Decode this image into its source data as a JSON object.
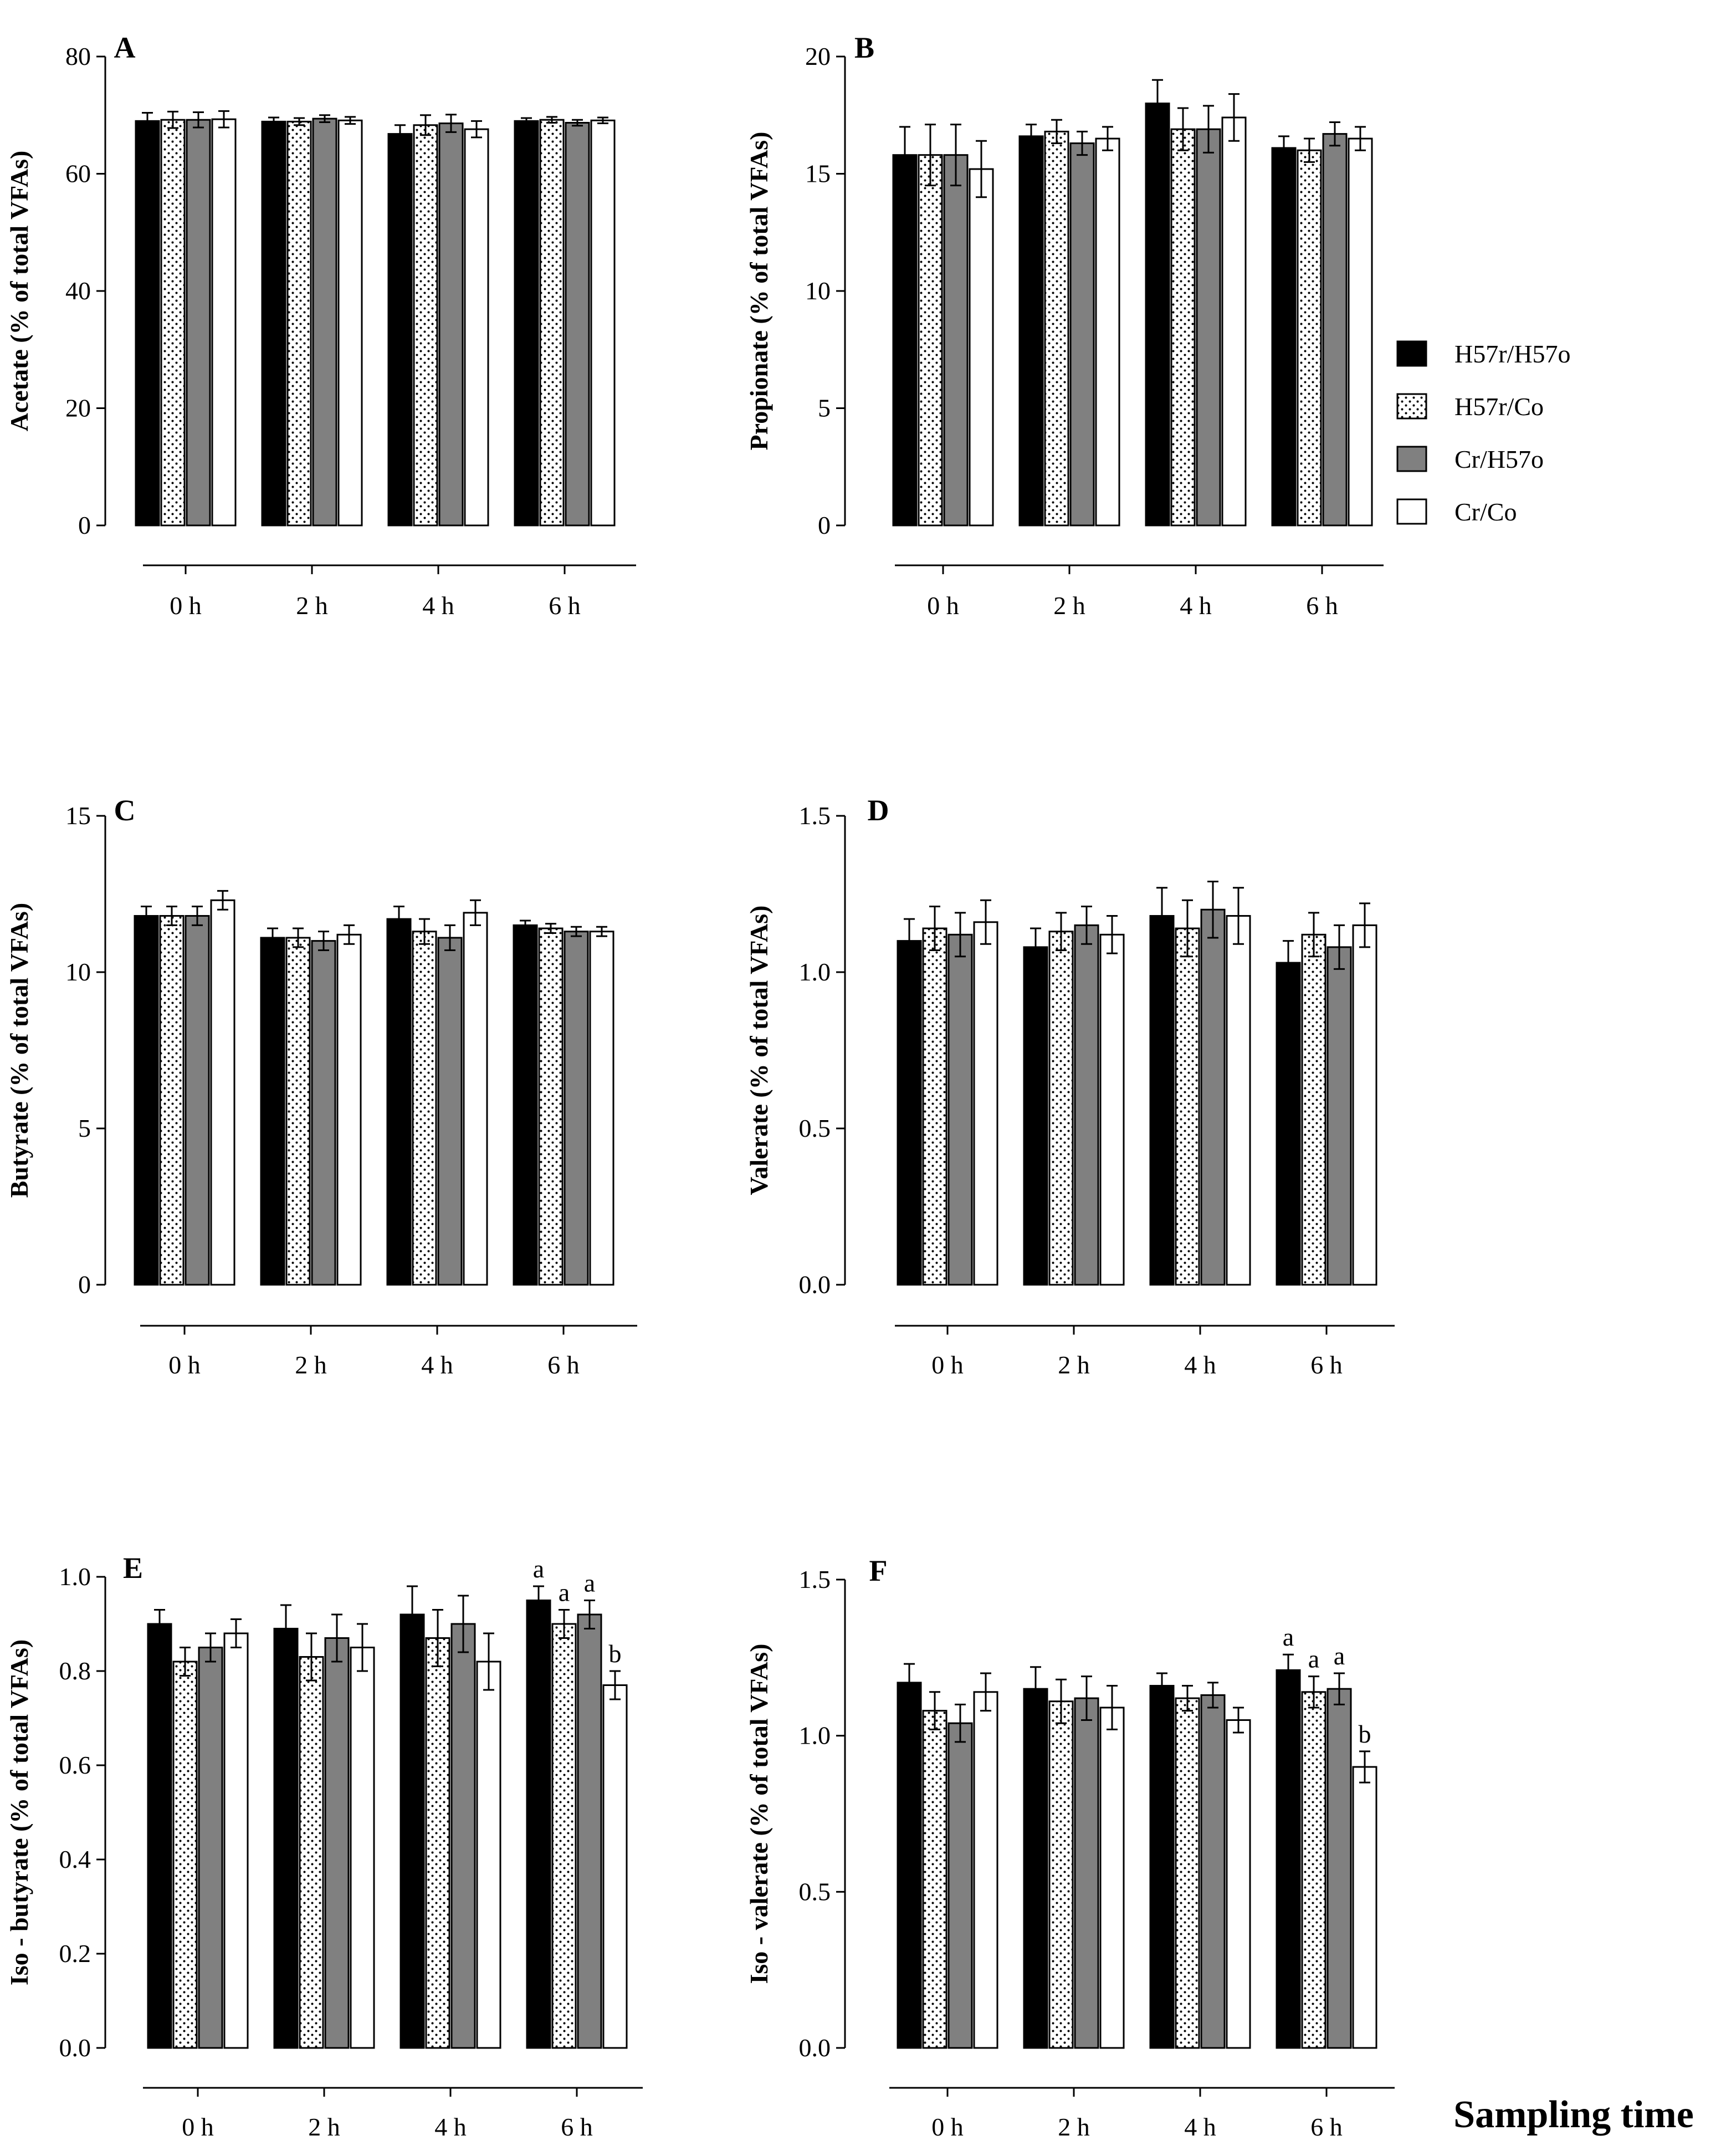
{
  "legend": [
    {
      "label": "H57r/H57o",
      "fill": "#000000",
      "pattern": "solid"
    },
    {
      "label": "H57r/Co",
      "fill": "#ffffff",
      "pattern": "dots"
    },
    {
      "label": "Cr/H57o",
      "fill": "#808080",
      "pattern": "solid"
    },
    {
      "label": "Cr/Co",
      "fill": "#ffffff",
      "pattern": "solid"
    }
  ],
  "x_title": "Sampling time",
  "chart_data": [
    {
      "panel": "A",
      "type": "bar",
      "ylabel": "Acetate (% of total VFAs)",
      "categories": [
        "0 h",
        "2 h",
        "4 h",
        "6 h"
      ],
      "ylim": [
        0,
        80
      ],
      "yticks": [
        "0",
        "20",
        "40",
        "60",
        "80"
      ],
      "series": [
        {
          "name": "H57r/H57o",
          "values": [
            69.0,
            68.9,
            66.8,
            69.0
          ],
          "errors": [
            1.4,
            0.7,
            1.5,
            0.5
          ]
        },
        {
          "name": "H57r/Co",
          "values": [
            69.2,
            68.9,
            68.3,
            69.2
          ],
          "errors": [
            1.4,
            0.6,
            1.7,
            0.5
          ]
        },
        {
          "name": "Cr/H57o",
          "values": [
            69.2,
            69.4,
            68.6,
            68.7
          ],
          "errors": [
            1.3,
            0.6,
            1.5,
            0.5
          ]
        },
        {
          "name": "Cr/Co",
          "values": [
            69.3,
            69.1,
            67.6,
            69.1
          ],
          "errors": [
            1.4,
            0.6,
            1.4,
            0.5
          ]
        }
      ],
      "annotations": []
    },
    {
      "panel": "B",
      "type": "bar",
      "ylabel": "Propionate (% of total VFAs)",
      "categories": [
        "0 h",
        "2 h",
        "4 h",
        "6 h"
      ],
      "ylim": [
        0,
        20
      ],
      "yticks": [
        "0",
        "5",
        "10",
        "15",
        "20"
      ],
      "series": [
        {
          "name": "H57r/H57o",
          "values": [
            15.8,
            16.6,
            18.0,
            16.1
          ],
          "errors": [
            1.2,
            0.5,
            1.0,
            0.5
          ]
        },
        {
          "name": "H57r/Co",
          "values": [
            15.8,
            16.8,
            16.9,
            16.0
          ],
          "errors": [
            1.3,
            0.5,
            0.9,
            0.5
          ]
        },
        {
          "name": "Cr/H57o",
          "values": [
            15.8,
            16.3,
            16.9,
            16.7
          ],
          "errors": [
            1.3,
            0.5,
            1.0,
            0.5
          ]
        },
        {
          "name": "Cr/Co",
          "values": [
            15.2,
            16.5,
            17.4,
            16.5
          ],
          "errors": [
            1.2,
            0.5,
            1.0,
            0.5
          ]
        }
      ],
      "annotations": []
    },
    {
      "panel": "C",
      "type": "bar",
      "ylabel": "Butyrate (% of total VFAs)",
      "categories": [
        "0 h",
        "2 h",
        "4 h",
        "6 h"
      ],
      "ylim": [
        0,
        15
      ],
      "yticks": [
        "0",
        "5",
        "10",
        "15"
      ],
      "series": [
        {
          "name": "H57r/H57o",
          "values": [
            11.8,
            11.1,
            11.7,
            11.5
          ],
          "errors": [
            0.3,
            0.3,
            0.4,
            0.15
          ]
        },
        {
          "name": "H57r/Co",
          "values": [
            11.8,
            11.1,
            11.3,
            11.4
          ],
          "errors": [
            0.3,
            0.3,
            0.4,
            0.15
          ]
        },
        {
          "name": "Cr/H57o",
          "values": [
            11.8,
            11.0,
            11.1,
            11.3
          ],
          "errors": [
            0.3,
            0.3,
            0.4,
            0.15
          ]
        },
        {
          "name": "Cr/Co",
          "values": [
            12.3,
            11.2,
            11.9,
            11.3
          ],
          "errors": [
            0.3,
            0.3,
            0.4,
            0.15
          ]
        }
      ],
      "annotations": []
    },
    {
      "panel": "D",
      "type": "bar",
      "ylabel": "Valerate (% of total VFAs)",
      "categories": [
        "0 h",
        "2 h",
        "4 h",
        "6 h"
      ],
      "ylim": [
        0,
        1.5
      ],
      "yticks": [
        "0.0",
        "0.5",
        "1.0",
        "1.5"
      ],
      "series": [
        {
          "name": "H57r/H57o",
          "values": [
            1.1,
            1.08,
            1.18,
            1.03
          ],
          "errors": [
            0.07,
            0.06,
            0.09,
            0.07
          ]
        },
        {
          "name": "H57r/Co",
          "values": [
            1.14,
            1.13,
            1.14,
            1.12
          ],
          "errors": [
            0.07,
            0.06,
            0.09,
            0.07
          ]
        },
        {
          "name": "Cr/H57o",
          "values": [
            1.12,
            1.15,
            1.2,
            1.08
          ],
          "errors": [
            0.07,
            0.06,
            0.09,
            0.07
          ]
        },
        {
          "name": "Cr/Co",
          "values": [
            1.16,
            1.12,
            1.18,
            1.15
          ],
          "errors": [
            0.07,
            0.06,
            0.09,
            0.07
          ]
        }
      ],
      "annotations": []
    },
    {
      "panel": "E",
      "type": "bar",
      "ylabel": "Iso - butyrate (% of total VFAs)",
      "categories": [
        "0 h",
        "2 h",
        "4 h",
        "6 h"
      ],
      "ylim": [
        0,
        1.0
      ],
      "yticks": [
        "0.0",
        "0.2",
        "0.4",
        "0.6",
        "0.8",
        "1.0"
      ],
      "series": [
        {
          "name": "H57r/H57o",
          "values": [
            0.9,
            0.89,
            0.92,
            0.95
          ],
          "errors": [
            0.03,
            0.05,
            0.06,
            0.03
          ]
        },
        {
          "name": "H57r/Co",
          "values": [
            0.82,
            0.83,
            0.87,
            0.9
          ],
          "errors": [
            0.03,
            0.05,
            0.06,
            0.03
          ]
        },
        {
          "name": "Cr/H57o",
          "values": [
            0.85,
            0.87,
            0.9,
            0.92
          ],
          "errors": [
            0.03,
            0.05,
            0.06,
            0.03
          ]
        },
        {
          "name": "Cr/Co",
          "values": [
            0.88,
            0.85,
            0.82,
            0.77
          ],
          "errors": [
            0.03,
            0.05,
            0.06,
            0.03
          ]
        }
      ],
      "annotations": [
        {
          "category": "6 h",
          "series": "H57r/H57o",
          "text": "a"
        },
        {
          "category": "6 h",
          "series": "H57r/Co",
          "text": "a"
        },
        {
          "category": "6 h",
          "series": "Cr/H57o",
          "text": "a"
        },
        {
          "category": "6 h",
          "series": "Cr/Co",
          "text": "b"
        }
      ]
    },
    {
      "panel": "F",
      "type": "bar",
      "ylabel": "Iso - valerate (% of total VFAs)",
      "categories": [
        "0 h",
        "2 h",
        "4 h",
        "6 h"
      ],
      "ylim": [
        0,
        1.5
      ],
      "yticks": [
        "0.0",
        "0.5",
        "1.0",
        "1.5"
      ],
      "series": [
        {
          "name": "H57r/H57o",
          "values": [
            1.17,
            1.15,
            1.16,
            1.21
          ],
          "errors": [
            0.06,
            0.07,
            0.04,
            0.05
          ]
        },
        {
          "name": "H57r/Co",
          "values": [
            1.08,
            1.11,
            1.12,
            1.14
          ],
          "errors": [
            0.06,
            0.07,
            0.04,
            0.05
          ]
        },
        {
          "name": "Cr/H57o",
          "values": [
            1.04,
            1.12,
            1.13,
            1.15
          ],
          "errors": [
            0.06,
            0.07,
            0.04,
            0.05
          ]
        },
        {
          "name": "Cr/Co",
          "values": [
            1.14,
            1.09,
            1.05,
            0.9
          ],
          "errors": [
            0.06,
            0.07,
            0.04,
            0.05
          ]
        }
      ],
      "annotations": [
        {
          "category": "6 h",
          "series": "H57r/H57o",
          "text": "a"
        },
        {
          "category": "6 h",
          "series": "H57r/Co",
          "text": "a"
        },
        {
          "category": "6 h",
          "series": "Cr/H57o",
          "text": "a"
        },
        {
          "category": "6 h",
          "series": "Cr/Co",
          "text": "b"
        }
      ]
    }
  ]
}
